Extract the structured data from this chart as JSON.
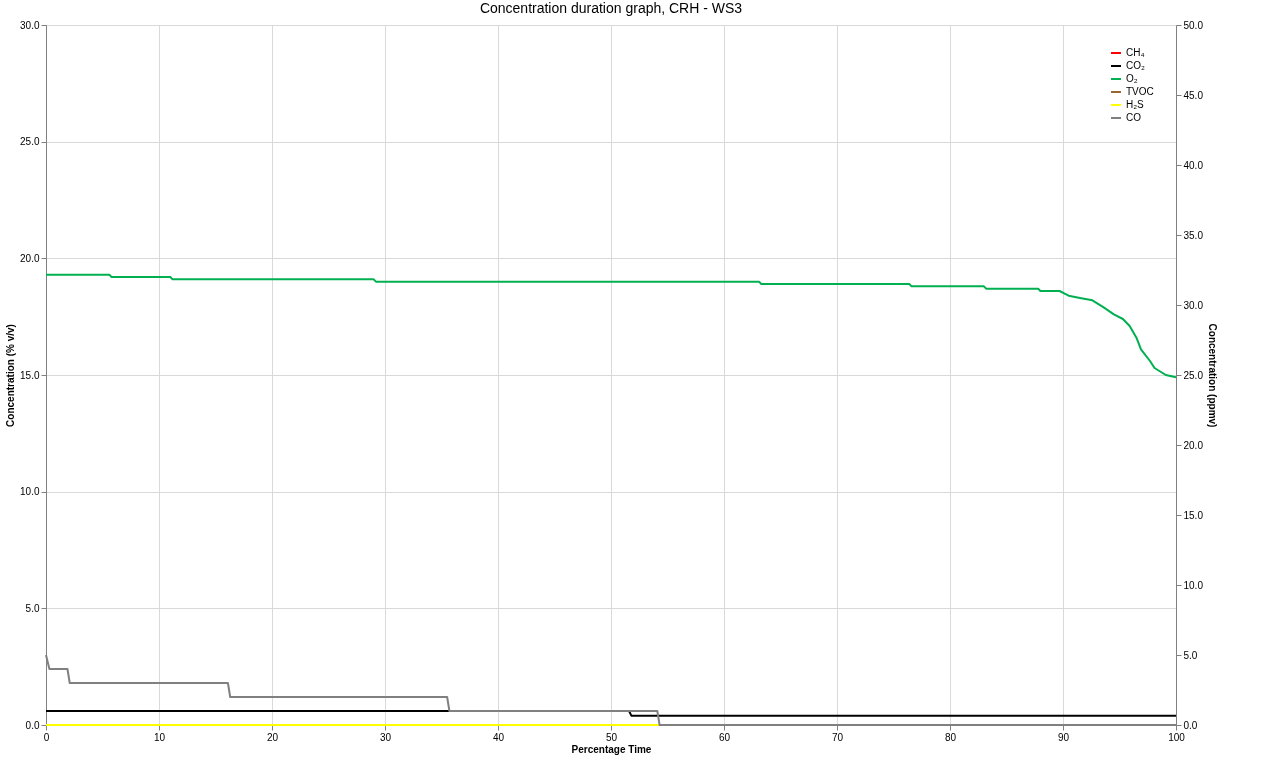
{
  "chart_data": {
    "type": "line",
    "title": "Concentration duration graph, CRH - WS3",
    "xlabel": "Percentage Time",
    "ylabel": "Concentration (% v/v)",
    "y2label": "Concentration (ppmv)",
    "xlim": [
      0,
      100
    ],
    "xticks": [
      0,
      10,
      20,
      30,
      40,
      50,
      60,
      70,
      80,
      90,
      100
    ],
    "ylim": [
      0,
      30
    ],
    "yticks": [
      {
        "value": 0,
        "label": "0.0"
      },
      {
        "value": 5,
        "label": "5.0"
      },
      {
        "value": 10,
        "label": "10.0"
      },
      {
        "value": 15,
        "label": "15.0"
      },
      {
        "value": 20,
        "label": "20.0"
      },
      {
        "value": 25,
        "label": "25.0"
      },
      {
        "value": 30,
        "label": "30.0"
      }
    ],
    "y2lim": [
      0,
      50
    ],
    "y2ticks": [
      {
        "value": 0,
        "label": "0.0"
      },
      {
        "value": 5,
        "label": "5.0"
      },
      {
        "value": 10,
        "label": "10.0"
      },
      {
        "value": 15,
        "label": "15.0"
      },
      {
        "value": 20,
        "label": "20.0"
      },
      {
        "value": 25,
        "label": "25.0"
      },
      {
        "value": 30,
        "label": "30.0"
      },
      {
        "value": 35,
        "label": "35.0"
      },
      {
        "value": 40,
        "label": "40.0"
      },
      {
        "value": 45,
        "label": "45.0"
      },
      {
        "value": 50,
        "label": "50.0"
      }
    ],
    "grid": true,
    "legend": "top right",
    "line_style": "solid",
    "marker": "none",
    "series": [
      {
        "name": "CH₄",
        "color": "#ff0000"
      },
      {
        "name": "CO₂",
        "color": "#000000",
        "x": [
          0,
          51.6,
          51.8,
          100
        ],
        "values": [
          0.6,
          0.6,
          0.4,
          0.4
        ]
      },
      {
        "name": "O₂",
        "color": "#00b050",
        "x": [
          0,
          5.6,
          5.8,
          11.0,
          11.2,
          29.0,
          29.2,
          63.1,
          63.3,
          76.4,
          76.6,
          83.0,
          83.2,
          87.8,
          88.0,
          89.7,
          90.1,
          90.5,
          91.5,
          92.6,
          93.6,
          94.5,
          95.3,
          95.9,
          96.5,
          96.9,
          97.7,
          98.1,
          99.1,
          100
        ],
        "values": [
          19.3,
          19.3,
          19.2,
          19.2,
          19.1,
          19.1,
          19.0,
          19.0,
          18.9,
          18.9,
          18.8,
          18.8,
          18.7,
          18.7,
          18.6,
          18.6,
          18.5,
          18.4,
          18.3,
          18.2,
          17.9,
          17.6,
          17.4,
          17.1,
          16.6,
          16.1,
          15.6,
          15.3,
          15.0,
          14.9
        ]
      },
      {
        "name": "TVOC",
        "color": "#996633"
      },
      {
        "name": "H₂S",
        "color": "#ffff00",
        "axis": "y2",
        "x": [
          0,
          100
        ],
        "values": [
          0,
          0
        ]
      },
      {
        "name": "CO",
        "color": "#808080",
        "axis": "y2",
        "x": [
          0,
          0.3,
          1.9,
          2.1,
          16.1,
          16.3,
          35.5,
          35.7,
          54.1,
          54.3,
          100
        ],
        "values": [
          5.0,
          4.0,
          4.0,
          3.0,
          3.0,
          2.0,
          2.0,
          1.0,
          1.0,
          0,
          0
        ]
      }
    ]
  }
}
